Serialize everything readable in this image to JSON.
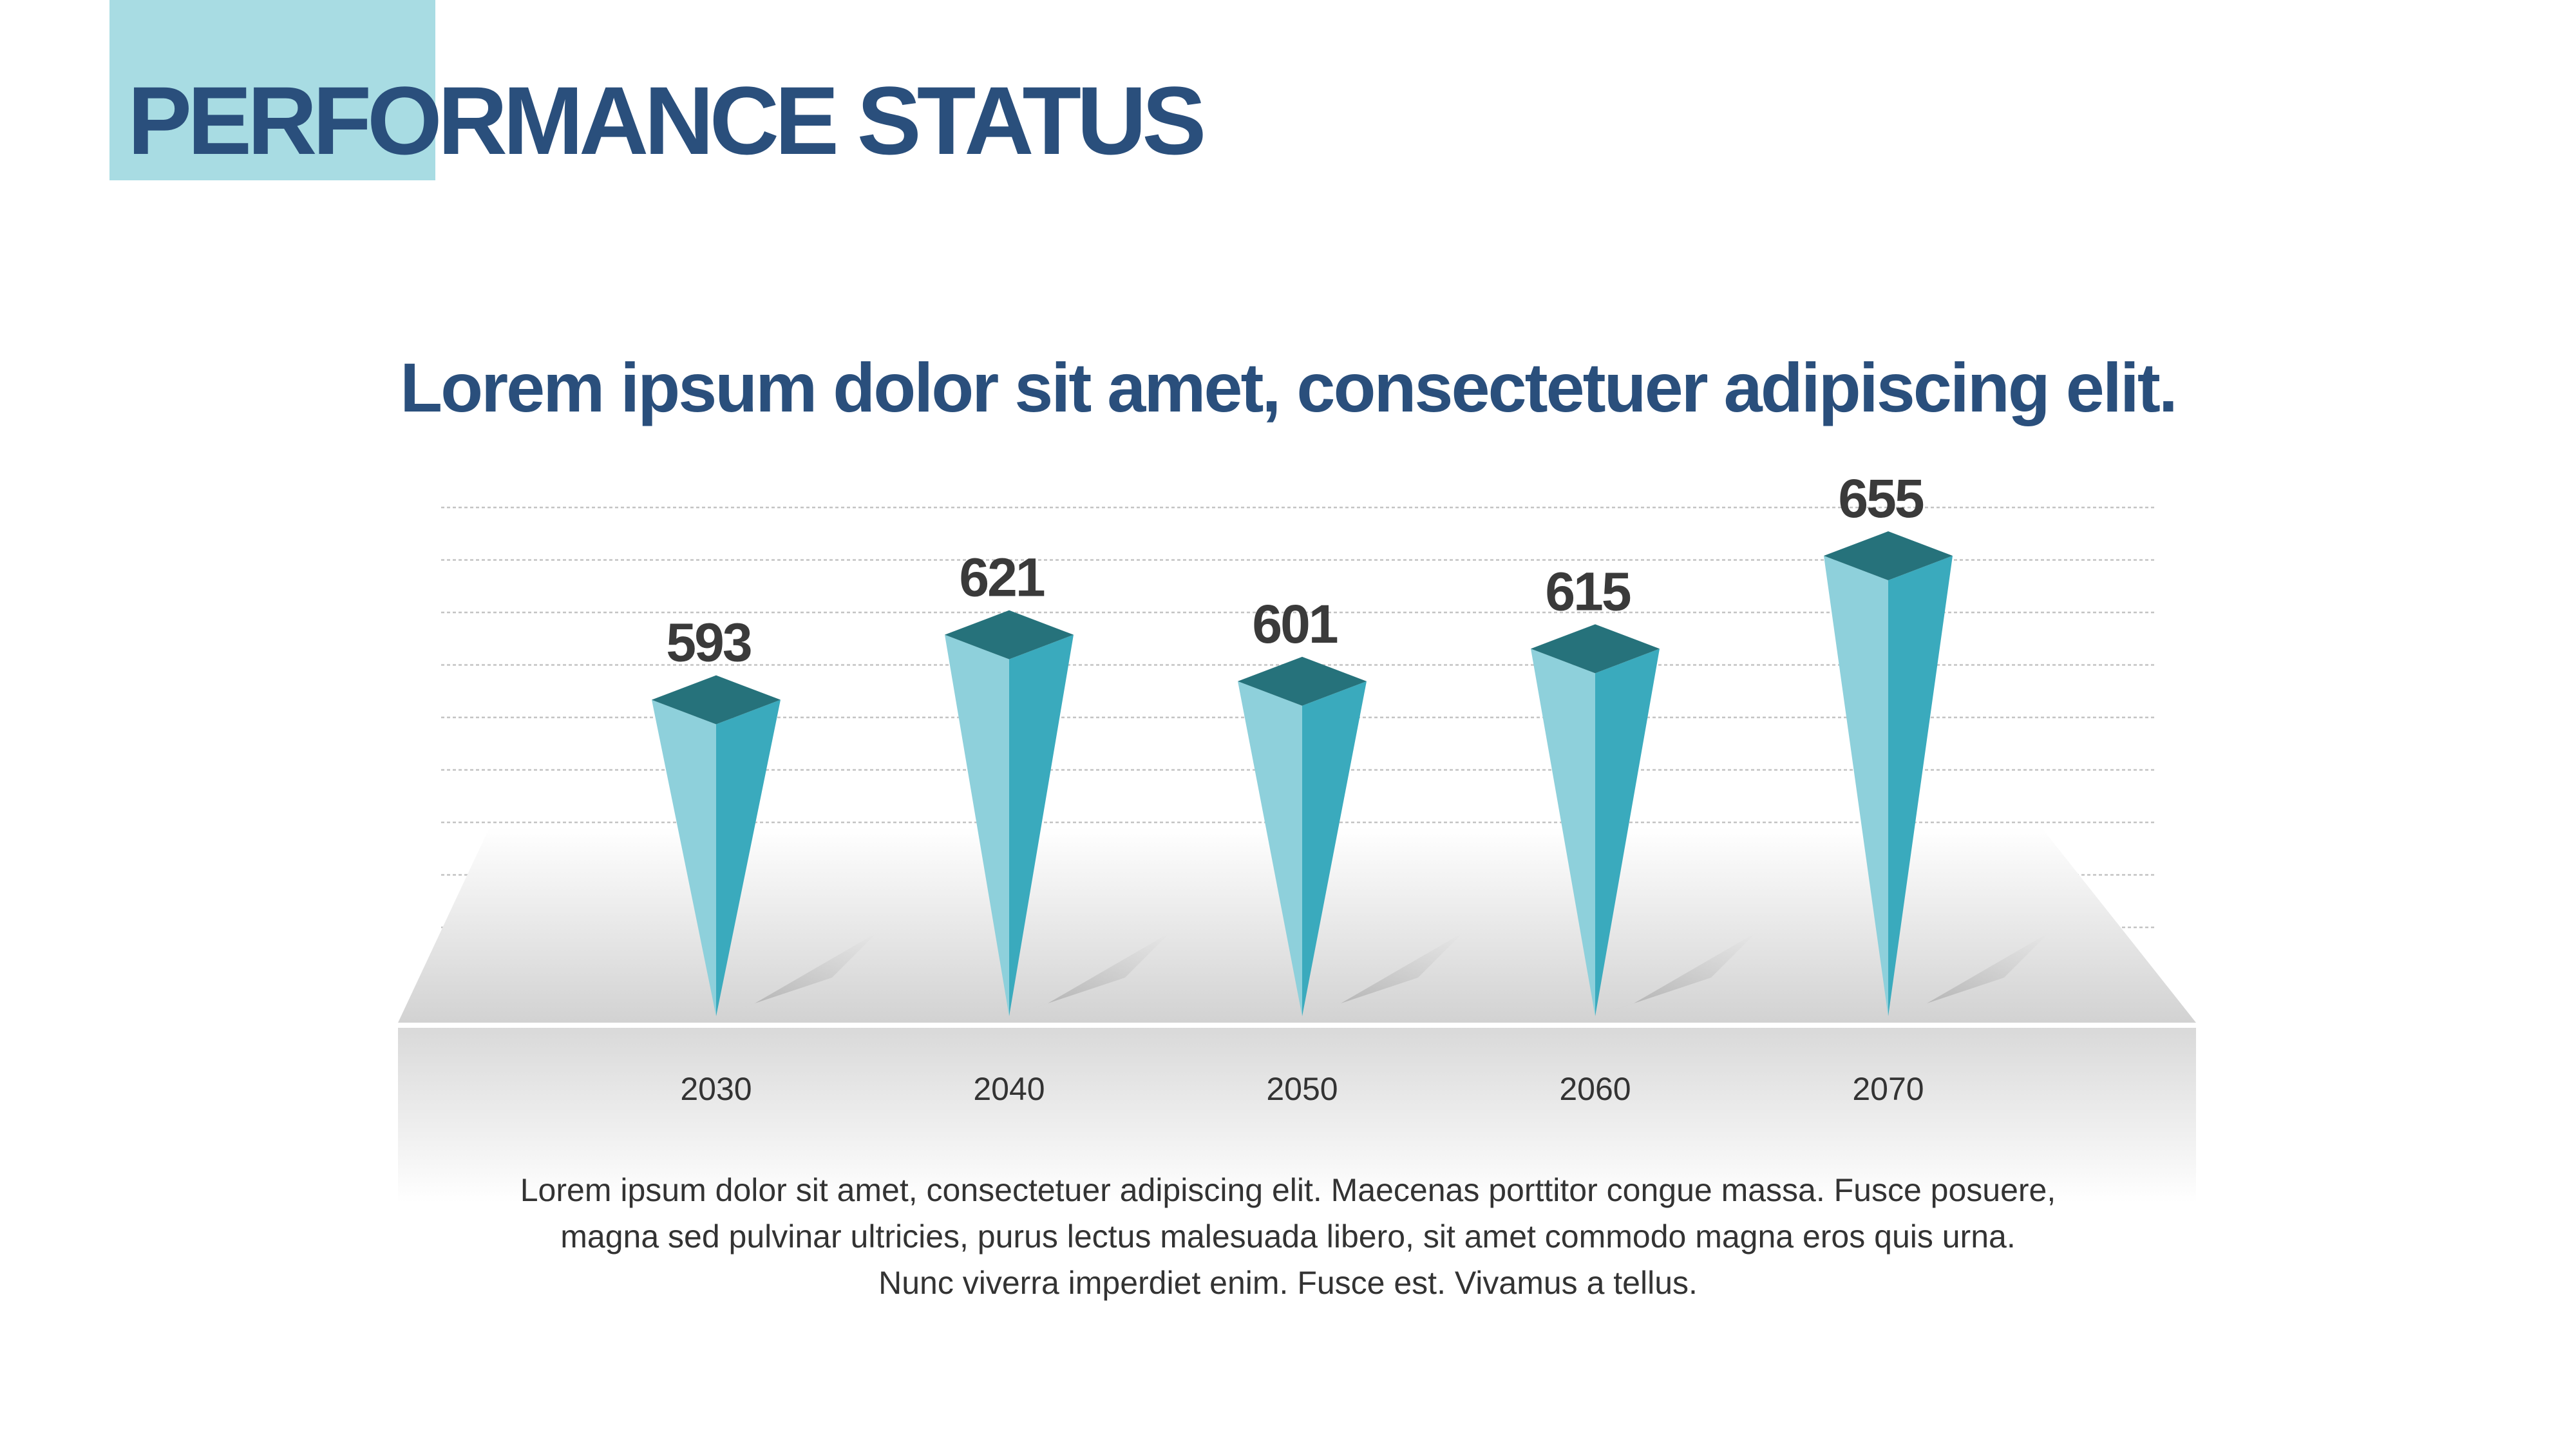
{
  "header": {
    "title": "PERFORMANCE STATUS"
  },
  "chart_heading": "Lorem ipsum dolor sit amet, consectetuer adipiscing elit.",
  "description": {
    "lines": [
      "Lorem ipsum dolor sit amet, consectetuer adipiscing elit. Maecenas porttitor congue massa. Fusce posuere,",
      "magna sed pulvinar ultricies, purus lectus malesuada libero, sit amet commodo magna eros quis urna.",
      "Nunc viverra imperdiet enim. Fusce est. Vivamus a tellus."
    ]
  },
  "colors": {
    "title_text": "#2a4f7c",
    "title_block": "#a8dce3",
    "bar_light": "#8ed0db",
    "bar_dark": "#3aaabd",
    "bar_cap": "#26727b",
    "value_text": "#3a3a3a",
    "tick_text": "#333333"
  },
  "chart_data": {
    "type": "bar",
    "style": "3d-pyramid-spikes",
    "categories": [
      "2030",
      "2040",
      "2050",
      "2060",
      "2070"
    ],
    "values": [
      593,
      621,
      601,
      615,
      655
    ],
    "data_labels": true,
    "grid": true,
    "xlabel": "",
    "ylabel": ""
  }
}
